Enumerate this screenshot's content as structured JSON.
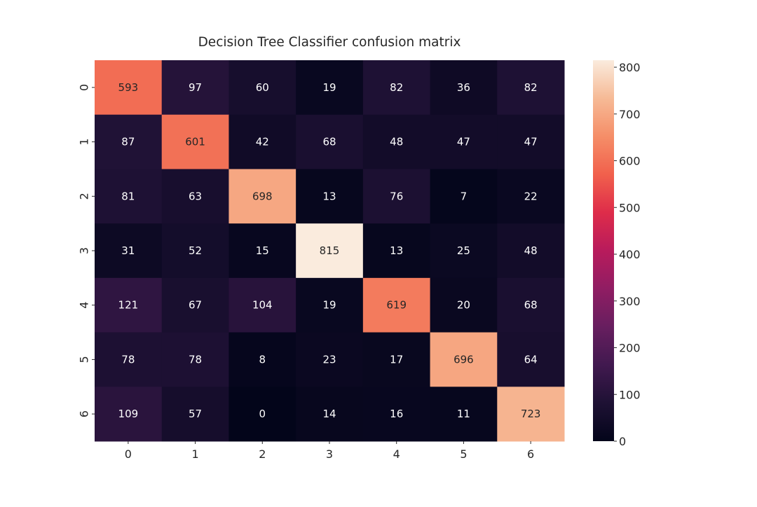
{
  "chart_data": {
    "type": "heatmap",
    "title": "Decision Tree Classifier confusion matrix",
    "xlabel": "",
    "ylabel": "",
    "x_categories": [
      "0",
      "1",
      "2",
      "3",
      "4",
      "5",
      "6"
    ],
    "y_categories": [
      "0",
      "1",
      "2",
      "3",
      "4",
      "5",
      "6"
    ],
    "values": [
      [
        593,
        97,
        60,
        19,
        82,
        36,
        82
      ],
      [
        87,
        601,
        42,
        68,
        48,
        47,
        47
      ],
      [
        81,
        63,
        698,
        13,
        76,
        7,
        22
      ],
      [
        31,
        52,
        15,
        815,
        13,
        25,
        48
      ],
      [
        121,
        67,
        104,
        19,
        619,
        20,
        68
      ],
      [
        78,
        78,
        8,
        23,
        17,
        696,
        64
      ],
      [
        109,
        57,
        0,
        14,
        16,
        11,
        723
      ]
    ],
    "colorbar": {
      "colormap": "rocket",
      "vmin": 0,
      "vmax": 815,
      "ticks": [
        0,
        100,
        200,
        300,
        400,
        500,
        600,
        700,
        800
      ]
    },
    "grid": false,
    "legend": "colorbar-right"
  }
}
